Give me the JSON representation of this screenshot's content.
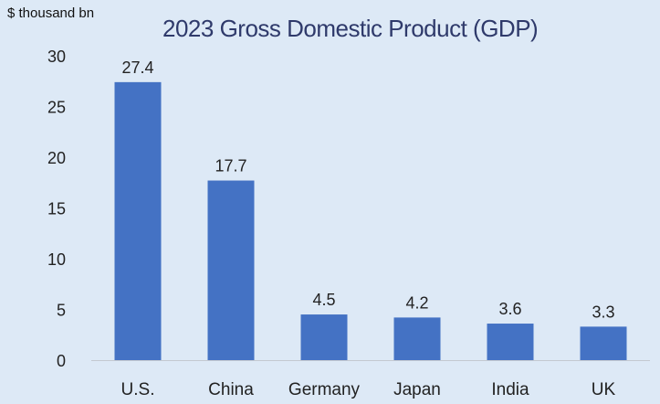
{
  "chart_data": {
    "type": "bar",
    "title": "2023 Gross Domestic Product (GDP)",
    "unit_label": "$ thousand bn",
    "categories": [
      "U.S.",
      "China",
      "Germany",
      "Japan",
      "India",
      "UK"
    ],
    "values": [
      27.4,
      17.7,
      4.5,
      4.2,
      3.6,
      3.3
    ],
    "data_labels": [
      "27.4",
      "17.7",
      "4.5",
      "4.2",
      "3.6",
      "3.3"
    ],
    "ylim": [
      0,
      30
    ],
    "yticks": [
      0,
      5,
      10,
      15,
      20,
      25,
      30
    ],
    "xlabel": "",
    "ylabel": "",
    "grid": false,
    "bar_color": "#4472c4"
  }
}
